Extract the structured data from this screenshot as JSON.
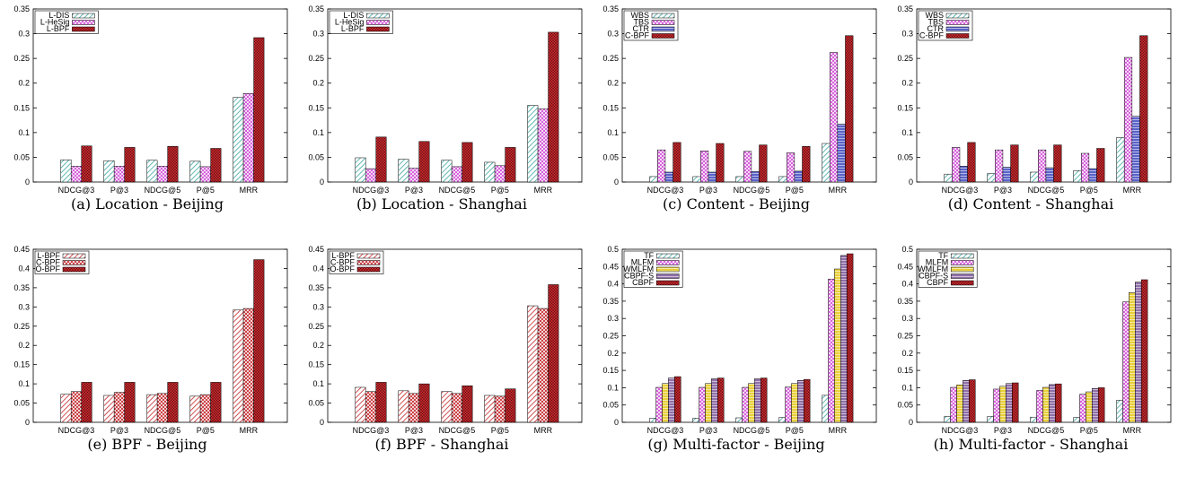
{
  "colors": {
    "L-DIS": "#3aa6a0",
    "L-HeSig": "#d04ad6",
    "L-BPF": "#c4262b",
    "WBS": "#3aa6a0",
    "TBS": "#d04ad6",
    "CTR": "#5a63c8",
    "C-BPF": "#c4262b",
    "O-BPF": "#c4262b",
    "TF": "#3aa6a0",
    "MLFM": "#d04ad6",
    "WMLFM": "#e8cf3a",
    "CBPF-S": "#8f6fa8",
    "CBPF": "#c4262b"
  },
  "chart_data": [
    {
      "type": "bar",
      "caption": "(a) Location - Beijing",
      "categories": [
        "NDCG@3",
        "P@3",
        "NDCG@5",
        "P@5",
        "MRR"
      ],
      "ylim": [
        0,
        0.35
      ],
      "yticks": [
        "0",
        "0.05",
        "0.1",
        "0.15",
        "0.2",
        "0.25",
        "0.3",
        "0.35"
      ],
      "series": [
        {
          "name": "L-DIS",
          "values": [
            0.045,
            0.043,
            0.044,
            0.042,
            0.171
          ]
        },
        {
          "name": "L-HeSig",
          "values": [
            0.032,
            0.032,
            0.032,
            0.031,
            0.179
          ]
        },
        {
          "name": "L-BPF",
          "values": [
            0.073,
            0.07,
            0.072,
            0.068,
            0.292
          ]
        }
      ]
    },
    {
      "type": "bar",
      "caption": "(b) Location - Shanghai",
      "categories": [
        "NDCG@3",
        "P@3",
        "NDCG@5",
        "P@5",
        "MRR"
      ],
      "ylim": [
        0,
        0.35
      ],
      "yticks": [
        "0",
        "0.05",
        "0.1",
        "0.15",
        "0.2",
        "0.25",
        "0.3",
        "0.35"
      ],
      "series": [
        {
          "name": "L-DIS",
          "values": [
            0.049,
            0.046,
            0.044,
            0.04,
            0.155
          ]
        },
        {
          "name": "L-HeSig",
          "values": [
            0.027,
            0.028,
            0.031,
            0.033,
            0.148
          ]
        },
        {
          "name": "L-BPF",
          "values": [
            0.091,
            0.082,
            0.08,
            0.07,
            0.303
          ]
        }
      ]
    },
    {
      "type": "bar",
      "caption": "(c) Content - Beijing",
      "categories": [
        "NDCG@3",
        "P@3",
        "NDCG@5",
        "P@5",
        "MRR"
      ],
      "ylim": [
        0,
        0.35
      ],
      "yticks": [
        "0",
        "0.05",
        "0.1",
        "0.15",
        "0.2",
        "0.25",
        "0.3",
        "0.35"
      ],
      "series": [
        {
          "name": "WBS",
          "values": [
            0.011,
            0.011,
            0.011,
            0.011,
            0.078
          ]
        },
        {
          "name": "TBS",
          "values": [
            0.065,
            0.063,
            0.062,
            0.059,
            0.262
          ]
        },
        {
          "name": "CTR",
          "values": [
            0.02,
            0.02,
            0.021,
            0.022,
            0.117
          ]
        },
        {
          "name": "C-BPF",
          "values": [
            0.08,
            0.078,
            0.075,
            0.072,
            0.296
          ]
        }
      ]
    },
    {
      "type": "bar",
      "caption": "(d) Content - Shanghai",
      "categories": [
        "NDCG@3",
        "P@3",
        "NDCG@5",
        "P@5",
        "MRR"
      ],
      "ylim": [
        0,
        0.35
      ],
      "yticks": [
        "0",
        "0.05",
        "0.1",
        "0.15",
        "0.2",
        "0.25",
        "0.3",
        "0.35"
      ],
      "series": [
        {
          "name": "WBS",
          "values": [
            0.016,
            0.017,
            0.02,
            0.023,
            0.09
          ]
        },
        {
          "name": "TBS",
          "values": [
            0.07,
            0.065,
            0.065,
            0.058,
            0.252
          ]
        },
        {
          "name": "CTR",
          "values": [
            0.032,
            0.03,
            0.029,
            0.027,
            0.133
          ]
        },
        {
          "name": "C-BPF",
          "values": [
            0.08,
            0.075,
            0.075,
            0.068,
            0.296
          ]
        }
      ]
    },
    {
      "type": "bar",
      "caption": "(e) BPF - Beijing",
      "categories": [
        "NDCG@3",
        "P@3",
        "NDCG@5",
        "P@5",
        "MRR"
      ],
      "ylim": [
        0,
        0.45
      ],
      "yticks": [
        "0",
        "0.05",
        "0.1",
        "0.15",
        "0.2",
        "0.25",
        "0.3",
        "0.35",
        "0.4",
        "0.45"
      ],
      "series": [
        {
          "name": "L-BPF",
          "values": [
            0.073,
            0.07,
            0.072,
            0.068,
            0.292
          ]
        },
        {
          "name": "C-BPF",
          "values": [
            0.08,
            0.078,
            0.075,
            0.072,
            0.296
          ]
        },
        {
          "name": "O-BPF",
          "values": [
            0.104,
            0.104,
            0.104,
            0.104,
            0.423
          ]
        }
      ]
    },
    {
      "type": "bar",
      "caption": "(f) BPF - Shanghai",
      "categories": [
        "NDCG@3",
        "P@3",
        "NDCG@5",
        "P@5",
        "MRR"
      ],
      "ylim": [
        0,
        0.45
      ],
      "yticks": [
        "0",
        "0.05",
        "0.1",
        "0.15",
        "0.2",
        "0.25",
        "0.3",
        "0.35",
        "0.4",
        "0.45"
      ],
      "series": [
        {
          "name": "L-BPF",
          "values": [
            0.091,
            0.082,
            0.08,
            0.07,
            0.303
          ]
        },
        {
          "name": "C-BPF",
          "values": [
            0.08,
            0.075,
            0.075,
            0.068,
            0.296
          ]
        },
        {
          "name": "O-BPF",
          "values": [
            0.104,
            0.1,
            0.095,
            0.087,
            0.358
          ]
        }
      ]
    },
    {
      "type": "bar",
      "caption": "(g) Multi-factor - Beijing",
      "categories": [
        "NDCG@3",
        "P@3",
        "NDCG@5",
        "P@5",
        "MRR"
      ],
      "ylim": [
        0,
        0.5
      ],
      "yticks": [
        "0",
        "0.05",
        "0.1",
        "0.15",
        "0.2",
        "0.25",
        "0.3",
        "0.35",
        "0.4",
        "0.45",
        "0.5"
      ],
      "series": [
        {
          "name": "TF",
          "values": [
            0.012,
            0.012,
            0.013,
            0.014,
            0.078
          ]
        },
        {
          "name": "MLFM",
          "values": [
            0.101,
            0.101,
            0.101,
            0.102,
            0.414
          ]
        },
        {
          "name": "WMLFM",
          "values": [
            0.112,
            0.112,
            0.112,
            0.112,
            0.443
          ]
        },
        {
          "name": "CBPF-S",
          "values": [
            0.128,
            0.126,
            0.126,
            0.121,
            0.482
          ]
        },
        {
          "name": "CBPF",
          "values": [
            0.132,
            0.128,
            0.128,
            0.124,
            0.487
          ]
        }
      ]
    },
    {
      "type": "bar",
      "caption": "(h) Multi-factor - Shanghai",
      "categories": [
        "NDCG@3",
        "P@3",
        "NDCG@5",
        "P@5",
        "MRR"
      ],
      "ylim": [
        0,
        0.5
      ],
      "yticks": [
        "0",
        "0.05",
        "0.1",
        "0.15",
        "0.2",
        "0.25",
        "0.3",
        "0.35",
        "0.4",
        "0.45",
        "0.5"
      ],
      "series": [
        {
          "name": "TF",
          "values": [
            0.017,
            0.017,
            0.015,
            0.014,
            0.064
          ]
        },
        {
          "name": "MLFM",
          "values": [
            0.101,
            0.096,
            0.092,
            0.081,
            0.348
          ]
        },
        {
          "name": "WMLFM",
          "values": [
            0.108,
            0.104,
            0.101,
            0.088,
            0.375
          ]
        },
        {
          "name": "CBPF-S",
          "values": [
            0.121,
            0.112,
            0.109,
            0.098,
            0.405
          ]
        },
        {
          "name": "CBPF",
          "values": [
            0.123,
            0.114,
            0.111,
            0.1,
            0.412
          ]
        }
      ]
    }
  ]
}
